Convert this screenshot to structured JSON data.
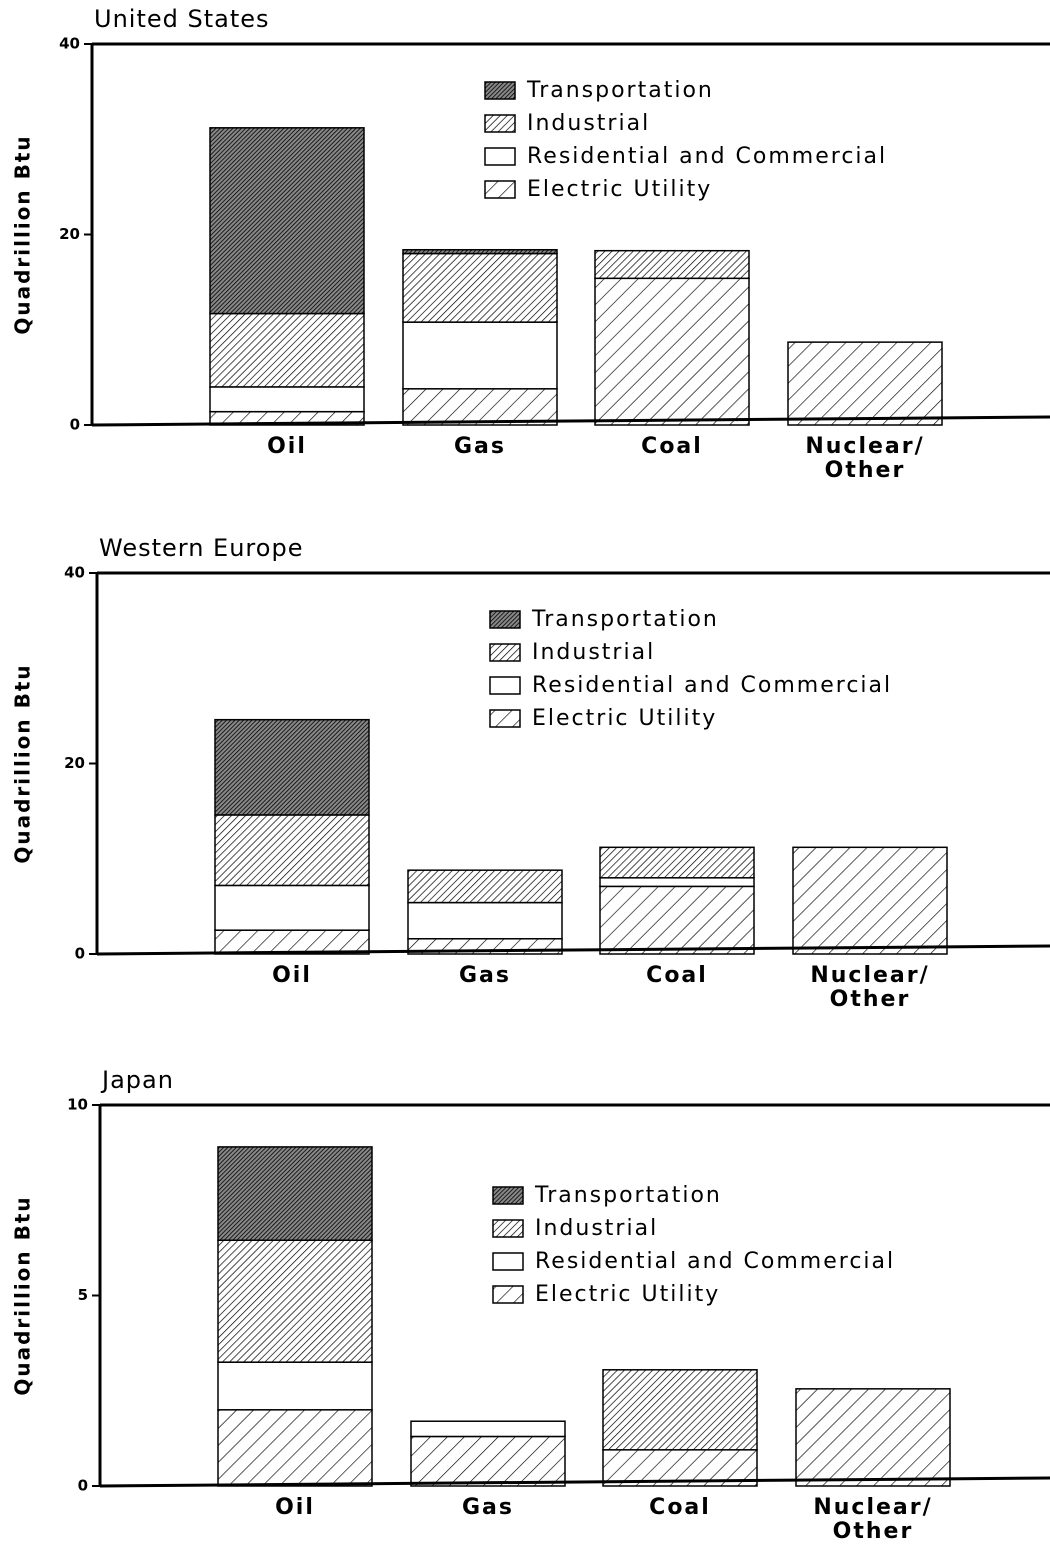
{
  "chart_data": [
    {
      "type": "stacked_bar",
      "title": "United States",
      "y_label": "Quadrillion Btu",
      "categories": [
        "Oil",
        "Gas",
        "Coal",
        "Nuclear/\nOther"
      ],
      "series": [
        {
          "name": "Electric Utility",
          "color": "#000000",
          "values": [
            1.4,
            3.8,
            15.4,
            8.7
          ]
        },
        {
          "name": "Residential and Commercial",
          "color": "#ffffff",
          "values": [
            2.6,
            7.0,
            0,
            0
          ]
        },
        {
          "name": "Industrial",
          "color": "#000000",
          "values": [
            7.7,
            7.2,
            2.9,
            0
          ]
        },
        {
          "name": "Transportation",
          "color": "#000000",
          "values": [
            19.5,
            0.4,
            0,
            0
          ]
        }
      ],
      "ylim": [
        0,
        40
      ],
      "yticks": [
        0,
        20,
        40
      ]
    },
    {
      "type": "stacked_bar",
      "title": "Western Europe",
      "y_label": "Quadrillion Btu",
      "categories": [
        "Oil",
        "Gas",
        "Coal",
        "Nuclear/\nOther"
      ],
      "series": [
        {
          "name": "Electric Utility",
          "color": "#000000",
          "values": [
            2.5,
            1.6,
            7.1,
            11.2
          ]
        },
        {
          "name": "Residential and Commercial",
          "color": "#ffffff",
          "values": [
            4.7,
            3.8,
            0.9,
            0
          ]
        },
        {
          "name": "Industrial",
          "color": "#000000",
          "values": [
            7.4,
            3.4,
            3.2,
            0
          ]
        },
        {
          "name": "Transportation",
          "color": "#000000",
          "values": [
            10.0,
            0,
            0,
            0
          ]
        }
      ],
      "ylim": [
        0,
        40
      ],
      "yticks": [
        0,
        20,
        40
      ]
    },
    {
      "type": "stacked_bar",
      "title": "Japan",
      "y_label": "Quadrillion Btu",
      "categories": [
        "Oil",
        "Gas",
        "Coal",
        "Nuclear/\nOther"
      ],
      "series": [
        {
          "name": "Electric Utility",
          "color": "#000000",
          "values": [
            2.0,
            1.3,
            0.95,
            2.55
          ]
        },
        {
          "name": "Residential and Commercial",
          "color": "#ffffff",
          "values": [
            1.25,
            0.4,
            0,
            0
          ]
        },
        {
          "name": "Industrial",
          "color": "#000000",
          "values": [
            3.2,
            0,
            2.1,
            0
          ]
        },
        {
          "name": "Transportation",
          "color": "#000000",
          "values": [
            2.45,
            0,
            0,
            0
          ]
        }
      ],
      "ylim": [
        0,
        10
      ],
      "yticks": [
        0,
        5,
        10
      ]
    }
  ]
}
